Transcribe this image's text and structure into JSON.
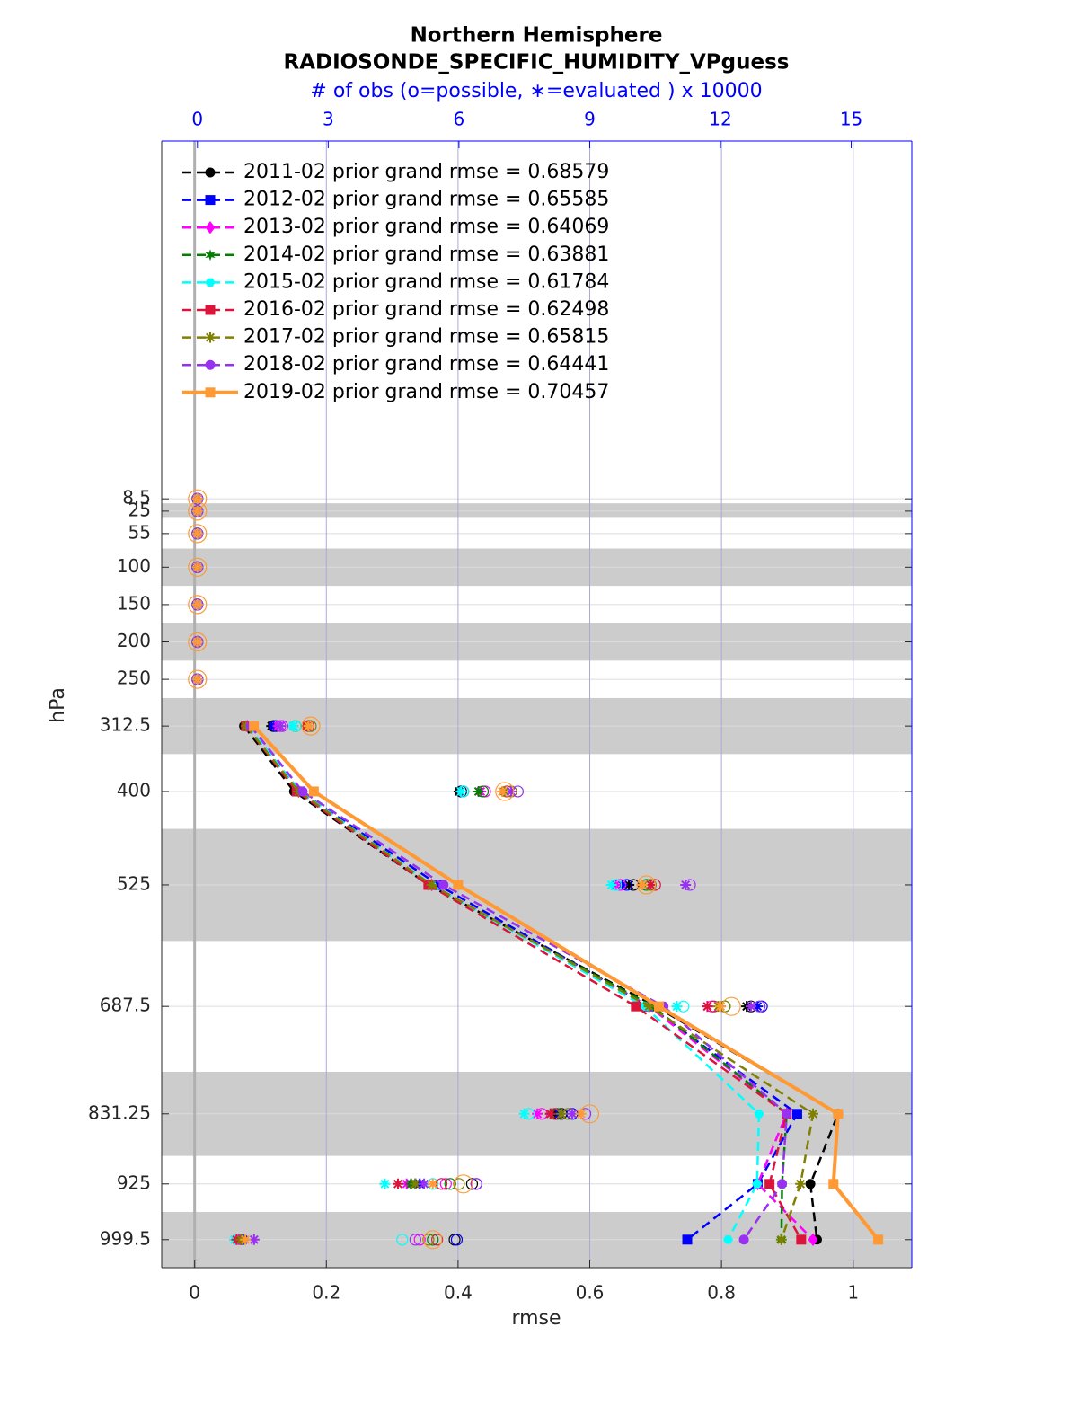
{
  "chart_data": {
    "type": "line",
    "title": "Northern Hemisphere",
    "subtitle": "RADIOSONDE_SPECIFIC_HUMIDITY_VPguess",
    "x2_label": "# of obs (o=possible, ∗=evaluated ) x 10000",
    "xlabel": "rmse",
    "ylabel": "hPa",
    "levels": [
      8.5,
      25,
      55,
      100,
      150,
      200,
      250,
      312.5,
      400,
      525,
      687.5,
      831.25,
      925,
      999.5
    ],
    "xlim": [
      -0.05,
      1.089
    ],
    "xticks": [
      0,
      0.2,
      0.4,
      0.6,
      0.8,
      1
    ],
    "x2lim": [
      -0.82,
      16.39
    ],
    "x2ticks": [
      0,
      3,
      6,
      9,
      12,
      15
    ],
    "ylim": [
      1037,
      -470
    ],
    "yticks": [
      8.5,
      25,
      55,
      100,
      150,
      200,
      250,
      312.5,
      400,
      525,
      687.5,
      831.25,
      925,
      999.5
    ],
    "y_reversed": true,
    "grid": true,
    "legend": "upper left",
    "shaded_layers": [
      [
        14.5,
        34
      ],
      [
        75,
        125
      ],
      [
        175,
        225
      ],
      [
        275,
        350
      ],
      [
        450,
        600
      ],
      [
        775,
        887.5
      ],
      [
        962.5,
        1037
      ]
    ],
    "series": [
      {
        "name": "2011-02 prior grand rmse = 0.68579",
        "color": "#000000",
        "marker": "circle",
        "dash": true,
        "values": [
          null,
          null,
          null,
          null,
          null,
          null,
          null,
          0.075,
          0.151,
          0.355,
          0.7,
          0.977,
          0.935,
          0.945
        ],
        "obs_used": [
          0,
          0,
          0,
          0,
          0,
          0,
          0,
          1.7,
          6.0,
          9.9,
          12.6,
          8.2,
          5.0,
          1.0
        ],
        "obs_possible": [
          0,
          0,
          0,
          0,
          0,
          0,
          0,
          1.75,
          6.05,
          10.0,
          12.7,
          8.35,
          6.3,
          5.9
        ]
      },
      {
        "name": "2012-02 prior grand rmse = 0.65585",
        "color": "#0000ff",
        "marker": "square",
        "dash": true,
        "values": [
          null,
          null,
          null,
          null,
          null,
          null,
          null,
          0.08,
          0.16,
          0.37,
          0.69,
          0.915,
          0.855,
          0.748
        ],
        "obs_used": [
          0,
          0,
          0,
          0,
          0,
          0,
          0,
          1.75,
          6.05,
          9.75,
          12.85,
          8.3,
          5.1,
          1.05
        ],
        "obs_possible": [
          0,
          0,
          0,
          0,
          0,
          0,
          0,
          1.8,
          6.1,
          9.85,
          12.95,
          8.6,
          6.4,
          5.95
        ]
      },
      {
        "name": "2013-02 prior grand rmse = 0.64069",
        "color": "#ff00ff",
        "marker": "diamond",
        "dash": true,
        "values": [
          null,
          null,
          null,
          null,
          null,
          null,
          null,
          0.08,
          0.158,
          0.36,
          0.69,
          0.899,
          0.855,
          0.939
        ],
        "obs_used": [
          0,
          0,
          0,
          0,
          0,
          0,
          0,
          1.85,
          6.5,
          9.6,
          11.7,
          7.8,
          4.8,
          0.95
        ],
        "obs_possible": [
          0,
          0,
          0,
          0,
          0,
          0,
          0,
          1.9,
          6.6,
          9.7,
          11.8,
          7.9,
          5.7,
          5.1
        ]
      },
      {
        "name": "2014-02 prior grand rmse = 0.63881",
        "color": "#008000",
        "marker": "star",
        "dash": true,
        "values": [
          null,
          null,
          null,
          null,
          null,
          null,
          null,
          0.078,
          0.157,
          0.355,
          0.696,
          0.899,
          0.892,
          0.891
        ],
        "obs_used": [
          0,
          0,
          0,
          0,
          0,
          0,
          0,
          2.2,
          6.45,
          10.2,
          12.0,
          8.1,
          4.9,
          1.0
        ],
        "obs_possible": [
          0,
          0,
          0,
          0,
          0,
          0,
          0,
          2.25,
          6.55,
          10.3,
          12.1,
          8.25,
          5.8,
          5.4
        ]
      },
      {
        "name": "2015-02 prior grand rmse = 0.61784",
        "color": "#00ffff",
        "marker": "hexagon",
        "dash": true,
        "values": [
          null,
          null,
          null,
          null,
          null,
          null,
          null,
          0.08,
          0.16,
          0.36,
          0.683,
          0.857,
          0.854,
          0.81
        ],
        "obs_used": [
          0,
          0,
          0,
          0,
          0,
          0,
          0,
          2.2,
          6.05,
          9.5,
          11.0,
          7.5,
          4.3,
          0.85
        ],
        "obs_possible": [
          0,
          0,
          0,
          0,
          0,
          0,
          0,
          2.25,
          6.1,
          9.6,
          11.15,
          7.6,
          5.4,
          4.7
        ]
      },
      {
        "name": "2016-02 prior grand rmse = 0.62498",
        "color": "#dc143c",
        "marker": "square",
        "dash": true,
        "values": [
          null,
          null,
          null,
          null,
          null,
          null,
          null,
          0.078,
          0.155,
          0.355,
          0.67,
          0.899,
          0.873,
          0.921
        ],
        "obs_used": [
          0,
          0,
          0,
          0,
          0,
          0,
          0,
          2.5,
          7.0,
          10.4,
          11.7,
          8.1,
          4.6,
          0.9
        ],
        "obs_possible": [
          0,
          0,
          0,
          0,
          0,
          0,
          0,
          2.55,
          7.1,
          10.5,
          11.85,
          8.2,
          5.6,
          5.5
        ]
      },
      {
        "name": "2017-02 prior grand rmse = 0.65815",
        "color": "#808000",
        "marker": "asterisk",
        "dash": true,
        "values": [
          null,
          null,
          null,
          null,
          null,
          null,
          null,
          0.078,
          0.158,
          0.36,
          0.69,
          0.939,
          0.92,
          0.891
        ],
        "obs_used": [
          0,
          0,
          0,
          0,
          0,
          0,
          0,
          2.55,
          7.05,
          10.2,
          11.95,
          8.35,
          5.0,
          1.0
        ],
        "obs_possible": [
          0,
          0,
          0,
          0,
          0,
          0,
          0,
          2.6,
          7.2,
          10.4,
          12.1,
          8.5,
          6.0,
          5.3
        ]
      },
      {
        "name": "2018-02 prior grand rmse = 0.64441",
        "color": "#9932f0",
        "marker": "circle",
        "dash": true,
        "values": [
          null,
          null,
          null,
          null,
          null,
          null,
          null,
          0.085,
          0.164,
          0.378,
          0.712,
          0.899,
          0.892,
          0.834
        ],
        "obs_used": [
          0,
          0,
          0,
          0,
          0,
          0,
          0,
          1.9,
          7.2,
          11.2,
          12.7,
          8.6,
          5.2,
          1.3
        ],
        "obs_possible": [
          0,
          0,
          0,
          0,
          0,
          0,
          0,
          1.95,
          7.35,
          11.3,
          12.9,
          8.9,
          6.4,
          5.0
        ]
      },
      {
        "name": "2019-02 prior grand rmse = 0.70457",
        "color": "#ff9933",
        "marker": "square",
        "dash": false,
        "values": [
          null,
          null,
          null,
          null,
          null,
          null,
          null,
          0.09,
          0.181,
          0.4,
          0.705,
          0.977,
          0.97,
          1.038
        ],
        "obs_used": [
          0,
          0,
          0,
          0,
          0,
          0,
          0,
          2.55,
          7.0,
          10.2,
          12.0,
          8.8,
          5.4,
          1.1
        ],
        "obs_possible": [
          0,
          0,
          0,
          0,
          0,
          0,
          0,
          2.6,
          7.05,
          10.3,
          12.25,
          9.0,
          6.1,
          5.4
        ]
      }
    ]
  }
}
